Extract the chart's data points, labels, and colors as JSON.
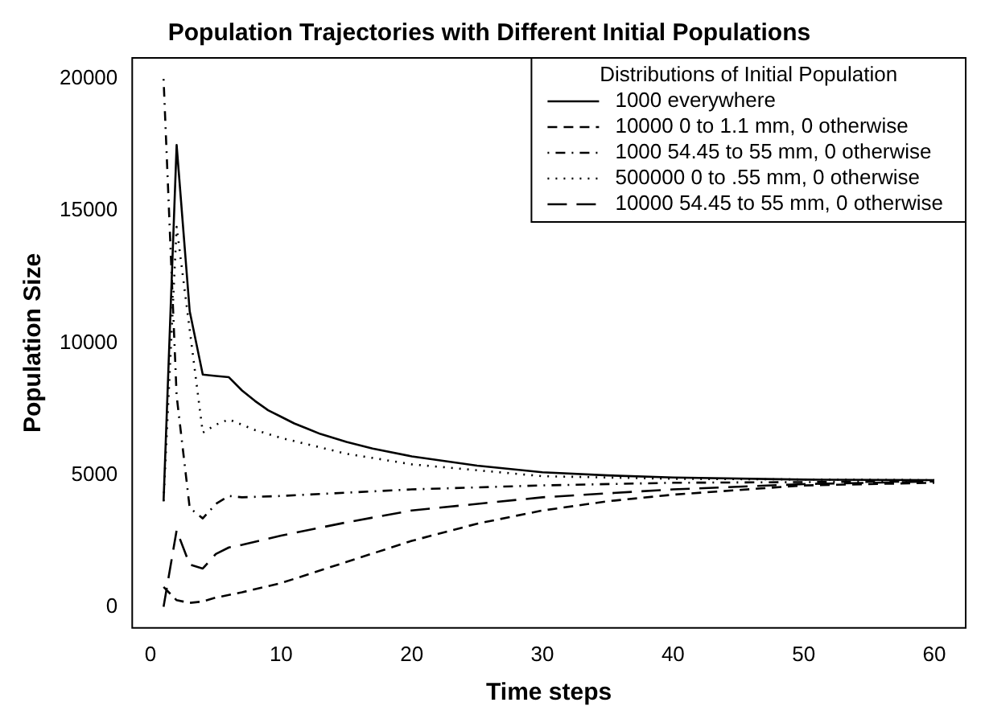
{
  "chart_data": {
    "type": "line",
    "title": "Population Trajectories with Different Initial Populations",
    "xlabel": "Time steps",
    "ylabel": "Population Size",
    "legend_title": "Distributions of Initial Population",
    "legend": "top right",
    "grid": false,
    "marker": "none",
    "xlim": [
      -1.4,
      62.4
    ],
    "ylim": [
      -800,
      20800
    ],
    "xticks": [
      0,
      10,
      20,
      30,
      40,
      50,
      60
    ],
    "yticks": [
      0,
      5000,
      10000,
      15000,
      20000
    ],
    "series": [
      {
        "name": "1000 everywhere",
        "color": "#000000",
        "line_style": "solid",
        "x": [
          1,
          2,
          3,
          4,
          5,
          6,
          7,
          8,
          9,
          10,
          11,
          12,
          13,
          14,
          15,
          17,
          20,
          25,
          30,
          35,
          40,
          50,
          60
        ],
        "values": [
          4000,
          17500,
          11200,
          8800,
          8750,
          8700,
          8200,
          7800,
          7450,
          7200,
          6950,
          6750,
          6550,
          6400,
          6250,
          6000,
          5700,
          5350,
          5100,
          4980,
          4900,
          4820,
          4800
        ]
      },
      {
        "name": "10000 0 to 1.1 mm, 0 otherwise",
        "color": "#000000",
        "line_style": "dashed",
        "x": [
          1,
          2,
          3,
          4,
          5,
          7,
          10,
          15,
          20,
          25,
          30,
          35,
          40,
          50,
          60
        ],
        "values": [
          750,
          250,
          150,
          200,
          350,
          550,
          900,
          1700,
          2500,
          3150,
          3650,
          4000,
          4250,
          4600,
          4700
        ]
      },
      {
        "name": "1000 54.45 to 55 mm, 0 otherwise",
        "color": "#000000",
        "line_style": "dashdot",
        "x": [
          1,
          2,
          3,
          4,
          5,
          6,
          7,
          10,
          20,
          30,
          40,
          60
        ],
        "values": [
          20000,
          8000,
          3750,
          3350,
          3900,
          4200,
          4150,
          4200,
          4450,
          4600,
          4700,
          4750
        ]
      },
      {
        "name": "500000 0 to .55 mm, 0 otherwise",
        "color": "#000000",
        "line_style": "dotted",
        "x": [
          1,
          2,
          3,
          4,
          5,
          6,
          7,
          8,
          10,
          15,
          20,
          30,
          40,
          60
        ],
        "values": [
          4000,
          14400,
          10500,
          6600,
          6900,
          7100,
          6900,
          6700,
          6400,
          5800,
          5400,
          4950,
          4850,
          4800
        ]
      },
      {
        "name": "10000 54.45 to 55 mm, 0 otherwise",
        "color": "#000000",
        "line_style": "longdash",
        "x": [
          1,
          2,
          3,
          4,
          5,
          6,
          7,
          10,
          15,
          20,
          30,
          40,
          50,
          60
        ],
        "values": [
          0,
          2900,
          1600,
          1450,
          2000,
          2250,
          2350,
          2700,
          3200,
          3650,
          4150,
          4450,
          4650,
          4750
        ]
      }
    ]
  }
}
